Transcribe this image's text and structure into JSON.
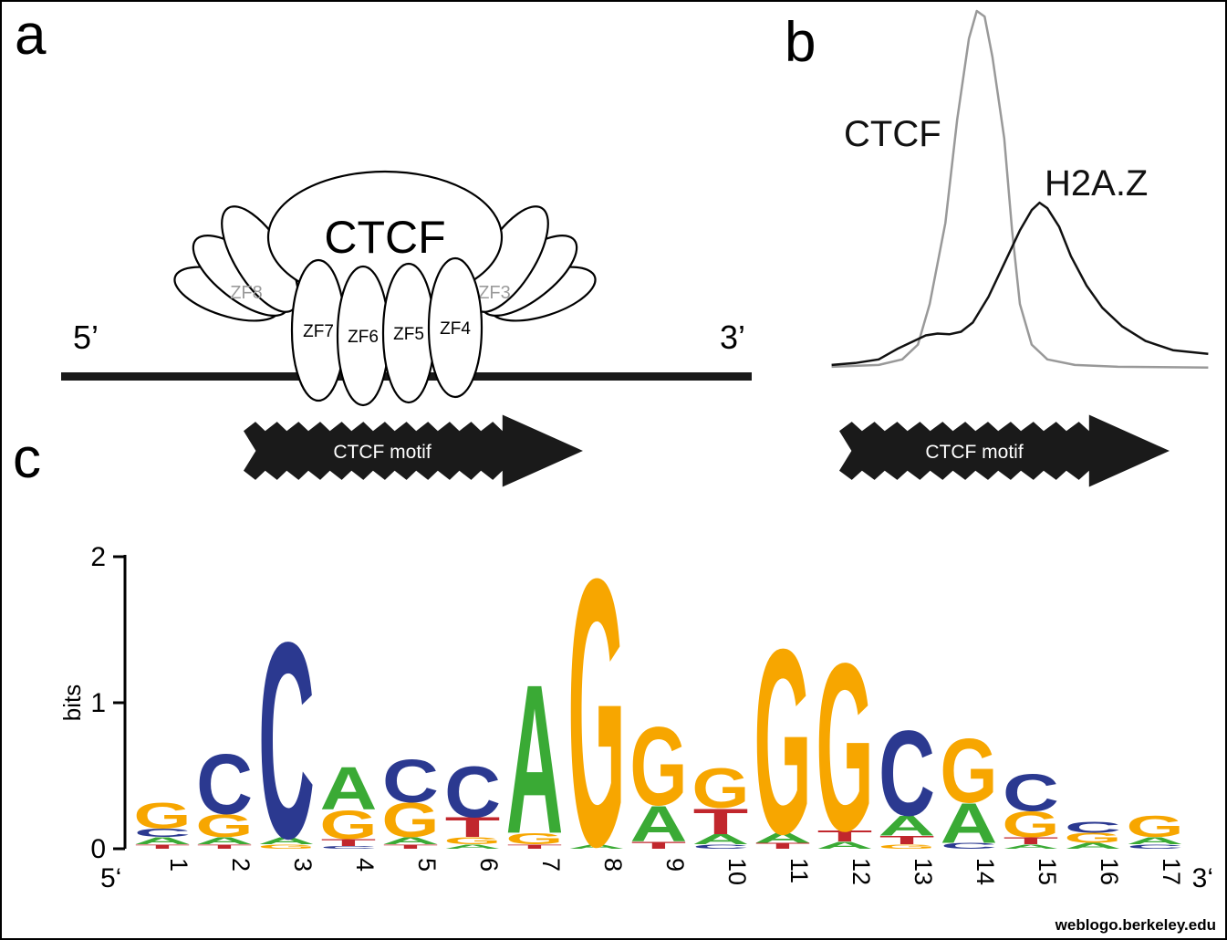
{
  "colors": {
    "arrow_black": "#1a1a1a",
    "ctcf_line_gray": "#999999",
    "h2az_line_black": "#111111",
    "side_finger_gray": "#9b9b9b"
  },
  "panel_a": {
    "label": "a",
    "protein": "CTCF",
    "fingers": [
      "ZF7",
      "ZF6",
      "ZF5",
      "ZF4"
    ],
    "side_fingers": [
      "ZF8",
      "ZF3"
    ],
    "five_prime": "5’",
    "three_prime": "3’",
    "motif_label": "CTCF motif"
  },
  "panel_b": {
    "label": "b",
    "ctcf_label": "CTCF",
    "h2az_label": "H2A.Z",
    "motif_label": "CTCF motif"
  },
  "panel_c": {
    "label": "c",
    "ylabel": "bits",
    "five_prime": "5‘",
    "three_prime": "3‘",
    "credit": "weblogo.berkeley.edu"
  },
  "chart_data": [
    {
      "type": "line",
      "title": "",
      "xlabel": "",
      "ylabel": "",
      "axes_visible": false,
      "units": "normalized signal (0-1) vs relative position (0-1)",
      "series": [
        {
          "name": "CTCF",
          "color": "#999999",
          "x": [
            0.02,
            0.14,
            0.2,
            0.24,
            0.27,
            0.31,
            0.34,
            0.37,
            0.39,
            0.41,
            0.43,
            0.46,
            0.48,
            0.5,
            0.53,
            0.57,
            0.64,
            0.75,
            0.98
          ],
          "y": [
            0.03,
            0.035,
            0.05,
            0.09,
            0.2,
            0.42,
            0.7,
            0.92,
            0.995,
            0.98,
            0.87,
            0.65,
            0.4,
            0.2,
            0.09,
            0.05,
            0.035,
            0.03,
            0.028
          ]
        },
        {
          "name": "H2A.Z",
          "color": "#111111",
          "x": [
            0.02,
            0.08,
            0.14,
            0.19,
            0.23,
            0.26,
            0.29,
            0.32,
            0.35,
            0.38,
            0.42,
            0.46,
            0.5,
            0.53,
            0.55,
            0.57,
            0.6,
            0.63,
            0.67,
            0.71,
            0.76,
            0.82,
            0.89,
            0.98
          ],
          "y": [
            0.035,
            0.04,
            0.05,
            0.08,
            0.1,
            0.115,
            0.12,
            0.118,
            0.125,
            0.15,
            0.22,
            0.31,
            0.4,
            0.455,
            0.475,
            0.46,
            0.41,
            0.33,
            0.25,
            0.19,
            0.14,
            0.1,
            0.075,
            0.065
          ]
        }
      ]
    },
    {
      "type": "sequence_logo",
      "ylabel": "bits",
      "ylim": [
        0,
        2
      ],
      "yticks": [
        0,
        1,
        2
      ],
      "letter_colors": {
        "A": "#3AAA35",
        "C": "#2B3990",
        "G": "#F7A600",
        "T": "#C1272D"
      },
      "positions": [
        {
          "pos": 1,
          "stack": [
            [
              "G",
              0.18
            ],
            [
              "C",
              0.06
            ],
            [
              "A",
              0.05
            ],
            [
              "T",
              0.03
            ]
          ]
        },
        {
          "pos": 2,
          "stack": [
            [
              "C",
              0.42
            ],
            [
              "G",
              0.16
            ],
            [
              "A",
              0.05
            ],
            [
              "T",
              0.03
            ]
          ]
        },
        {
          "pos": 3,
          "stack": [
            [
              "C",
              1.38
            ],
            [
              "A",
              0.05
            ],
            [
              "G",
              0.03
            ]
          ]
        },
        {
          "pos": 4,
          "stack": [
            [
              "A",
              0.3
            ],
            [
              "G",
              0.2
            ],
            [
              "T",
              0.05
            ],
            [
              "C",
              0.02
            ]
          ]
        },
        {
          "pos": 5,
          "stack": [
            [
              "C",
              0.3
            ],
            [
              "G",
              0.24
            ],
            [
              "A",
              0.05
            ],
            [
              "T",
              0.03
            ]
          ]
        },
        {
          "pos": 6,
          "stack": [
            [
              "C",
              0.36
            ],
            [
              "T",
              0.14
            ],
            [
              "G",
              0.05
            ],
            [
              "A",
              0.03
            ]
          ]
        },
        {
          "pos": 7,
          "stack": [
            [
              "A",
              1.05
            ],
            [
              "G",
              0.08
            ],
            [
              "T",
              0.03
            ]
          ]
        },
        {
          "pos": 8,
          "stack": [
            [
              "G",
              1.88
            ],
            [
              "A",
              0.03
            ]
          ]
        },
        {
          "pos": 9,
          "stack": [
            [
              "G",
              0.55
            ],
            [
              "A",
              0.25
            ],
            [
              "T",
              0.05
            ]
          ]
        },
        {
          "pos": 10,
          "stack": [
            [
              "G",
              0.28
            ],
            [
              "T",
              0.18
            ],
            [
              "A",
              0.07
            ],
            [
              "C",
              0.03
            ]
          ]
        },
        {
          "pos": 11,
          "stack": [
            [
              "G",
              1.3
            ],
            [
              "A",
              0.07
            ],
            [
              "T",
              0.04
            ]
          ]
        },
        {
          "pos": 12,
          "stack": [
            [
              "G",
              1.18
            ],
            [
              "T",
              0.08
            ],
            [
              "A",
              0.05
            ]
          ]
        },
        {
          "pos": 13,
          "stack": [
            [
              "C",
              0.6
            ],
            [
              "A",
              0.14
            ],
            [
              "T",
              0.06
            ],
            [
              "G",
              0.03
            ]
          ]
        },
        {
          "pos": 14,
          "stack": [
            [
              "G",
              0.45
            ],
            [
              "A",
              0.28
            ],
            [
              "C",
              0.04
            ]
          ]
        },
        {
          "pos": 15,
          "stack": [
            [
              "C",
              0.26
            ],
            [
              "G",
              0.18
            ],
            [
              "T",
              0.05
            ],
            [
              "A",
              0.03
            ]
          ]
        },
        {
          "pos": 16,
          "stack": [
            [
              "C",
              0.08
            ],
            [
              "G",
              0.07
            ],
            [
              "A",
              0.04
            ]
          ]
        },
        {
          "pos": 17,
          "stack": [
            [
              "G",
              0.15
            ],
            [
              "A",
              0.05
            ],
            [
              "C",
              0.03
            ]
          ]
        }
      ]
    }
  ]
}
